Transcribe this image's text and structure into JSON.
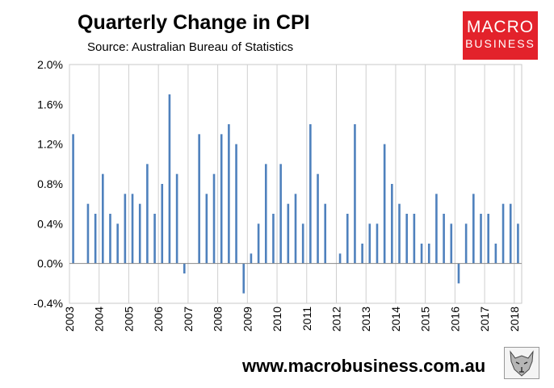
{
  "header": {
    "title": "Quarterly Change in CPI",
    "subtitle": "Source: Australian Bureau of Statistics"
  },
  "logo": {
    "line1": "MACRO",
    "line2": "BUSINESS",
    "bg_color": "#e3222b"
  },
  "footer": {
    "url": "www.macrobusiness.com.au",
    "emblem": "wolf-emblem-icon"
  },
  "chart_data": {
    "type": "bar",
    "title": "Quarterly Change in CPI",
    "xlabel": "",
    "ylabel": "",
    "ylim": [
      -0.4,
      2.0
    ],
    "yticks": [
      "-0.4%",
      "0.0%",
      "0.4%",
      "0.8%",
      "1.2%",
      "1.6%",
      "2.0%"
    ],
    "xticks": [
      "2003",
      "2004",
      "2005",
      "2006",
      "2007",
      "2008",
      "2009",
      "2010",
      "2011",
      "2012",
      "2013",
      "2014",
      "2015",
      "2016",
      "2017",
      "2018"
    ],
    "grid": "vertical",
    "bar_color": "#4f81bd",
    "values": [
      1.3,
      0.0,
      0.6,
      0.5,
      0.9,
      0.5,
      0.4,
      0.7,
      0.7,
      0.6,
      1.0,
      0.5,
      0.8,
      1.7,
      0.9,
      -0.1,
      0.0,
      1.3,
      0.7,
      0.9,
      1.3,
      1.4,
      1.2,
      -0.3,
      0.1,
      0.4,
      1.0,
      0.5,
      1.0,
      0.6,
      0.7,
      0.4,
      1.4,
      0.9,
      0.6,
      0.0,
      0.1,
      0.5,
      1.4,
      0.2,
      0.4,
      0.4,
      1.2,
      0.8,
      0.6,
      0.5,
      0.5,
      0.2,
      0.2,
      0.7,
      0.5,
      0.4,
      -0.2,
      0.4,
      0.7,
      0.5,
      0.5,
      0.2,
      0.6,
      0.6,
      0.4
    ]
  }
}
